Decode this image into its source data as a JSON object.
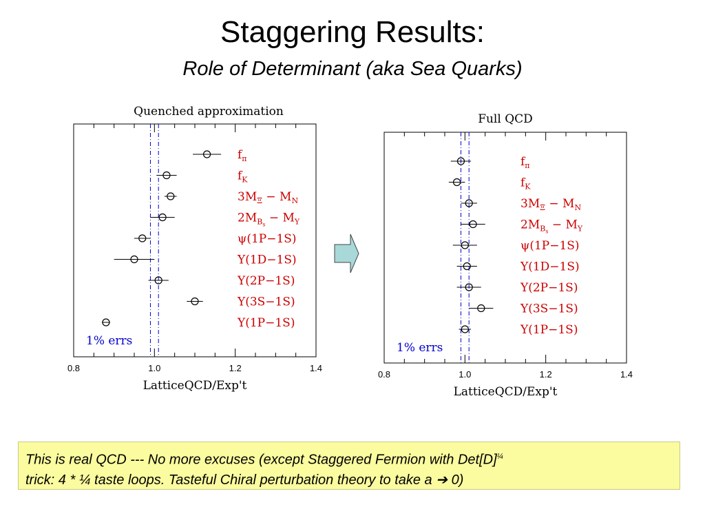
{
  "slide": {
    "title": "Staggering Results:",
    "subtitle": "Role of Determinant (aka Sea Quarks)"
  },
  "arrow": {
    "color": "#a8d8d8",
    "direction": "right"
  },
  "note": {
    "line1": "This is real QCD --- No more excuses (except Staggered Fermion with Det[D]",
    "line1_sup": "¼",
    "line2": "trick: 4 * ¼ taste loops. Tasteful Chiral perturbation theory to take a ",
    "line2_arrow": "➔",
    "line2_end": " 0)",
    "background": "#fbfb9f"
  },
  "chart_data": [
    {
      "type": "scatter",
      "title": "Quenched approximation",
      "xlabel": "LatticeQCD/Exp't",
      "xlim": [
        0.8,
        1.4
      ],
      "xticks": [
        "0.8",
        "1.0",
        "1.2",
        "1.4"
      ],
      "band": [
        0.99,
        1.01
      ],
      "band_label": "1% errs",
      "label_color": "#cc0000",
      "band_color": "#0000cc",
      "points": [
        {
          "name": "fπ",
          "x": 1.13,
          "xerr": 0.035
        },
        {
          "name": "fK",
          "x": 1.03,
          "xerr": 0.025
        },
        {
          "name": "3MΞ − MN",
          "x": 1.04,
          "xerr": 0.015
        },
        {
          "name": "2MBs − MΥ",
          "x": 1.02,
          "xerr": 0.03
        },
        {
          "name": "ψ(1P−1S)",
          "x": 0.97,
          "xerr": 0.02
        },
        {
          "name": "Υ(1D−1S)",
          "x": 0.95,
          "xerr": 0.05
        },
        {
          "name": "Υ(2P−1S)",
          "x": 1.01,
          "xerr": 0.025
        },
        {
          "name": "Υ(3S−1S)",
          "x": 1.1,
          "xerr": 0.02
        },
        {
          "name": "Υ(1P−1S)",
          "x": 0.88,
          "xerr": 0.01
        }
      ]
    },
    {
      "type": "scatter",
      "title": "Full QCD",
      "xlabel": "LatticeQCD/Exp't",
      "xlim": [
        0.8,
        1.4
      ],
      "xticks": [
        "0.8",
        "1.0",
        "1.2",
        "1.4"
      ],
      "band": [
        0.99,
        1.01
      ],
      "band_label": "1% errs",
      "label_color": "#cc0000",
      "band_color": "#0000cc",
      "points": [
        {
          "name": "fπ",
          "x": 0.99,
          "xerr": 0.025
        },
        {
          "name": "fK",
          "x": 0.98,
          "xerr": 0.02
        },
        {
          "name": "3MΞ − MN",
          "x": 1.01,
          "xerr": 0.02
        },
        {
          "name": "2MBs − MΥ",
          "x": 1.02,
          "xerr": 0.03
        },
        {
          "name": "ψ(1P−1S)",
          "x": 1.0,
          "xerr": 0.03
        },
        {
          "name": "Υ(1D−1S)",
          "x": 1.005,
          "xerr": 0.025
        },
        {
          "name": "Υ(2P−1S)",
          "x": 1.01,
          "xerr": 0.03
        },
        {
          "name": "Υ(3S−1S)",
          "x": 1.04,
          "xerr": 0.03
        },
        {
          "name": "Υ(1P−1S)",
          "x": 1.0,
          "xerr": 0.015
        }
      ]
    }
  ]
}
